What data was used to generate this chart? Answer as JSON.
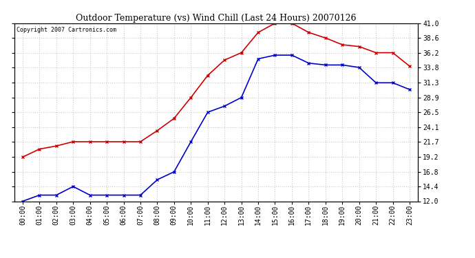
{
  "title": "Outdoor Temperature (vs) Wind Chill (Last 24 Hours) 20070126",
  "copyright": "Copyright 2007 Cartronics.com",
  "hours": [
    "00:00",
    "01:00",
    "02:00",
    "03:00",
    "04:00",
    "05:00",
    "06:00",
    "07:00",
    "08:00",
    "09:00",
    "10:00",
    "11:00",
    "12:00",
    "13:00",
    "14:00",
    "15:00",
    "16:00",
    "17:00",
    "18:00",
    "19:00",
    "20:00",
    "21:00",
    "22:00",
    "23:00"
  ],
  "temp": [
    19.2,
    20.5,
    21.0,
    21.7,
    21.7,
    21.7,
    21.7,
    21.7,
    23.5,
    25.5,
    28.9,
    32.5,
    35.0,
    36.2,
    39.5,
    41.0,
    41.0,
    39.5,
    38.6,
    37.5,
    37.2,
    36.2,
    36.2,
    34.0
  ],
  "windchill": [
    12.0,
    13.0,
    13.0,
    14.4,
    13.0,
    13.0,
    13.0,
    13.0,
    15.5,
    16.8,
    21.7,
    26.5,
    27.5,
    28.9,
    35.2,
    35.8,
    35.8,
    34.5,
    34.2,
    34.2,
    33.8,
    31.3,
    31.3,
    30.2
  ],
  "temp_color": "#cc0000",
  "windchill_color": "#0000cc",
  "background_color": "#ffffff",
  "plot_bg_color": "#ffffff",
  "grid_color": "#c8c8c8",
  "ymin": 12.0,
  "ymax": 41.0,
  "yticks": [
    12.0,
    14.4,
    16.8,
    19.2,
    21.7,
    24.1,
    26.5,
    28.9,
    31.3,
    33.8,
    36.2,
    38.6,
    41.0
  ],
  "ytick_labels": [
    "12.0",
    "14.4",
    "16.8",
    "19.2",
    "21.7",
    "24.1",
    "26.5",
    "28.9",
    "31.3",
    "33.8",
    "36.2",
    "38.6",
    "41.0"
  ],
  "marker": "x",
  "markersize": 3.5,
  "linewidth": 1.2,
  "title_fontsize": 9,
  "tick_fontsize": 7,
  "copyright_fontsize": 6
}
